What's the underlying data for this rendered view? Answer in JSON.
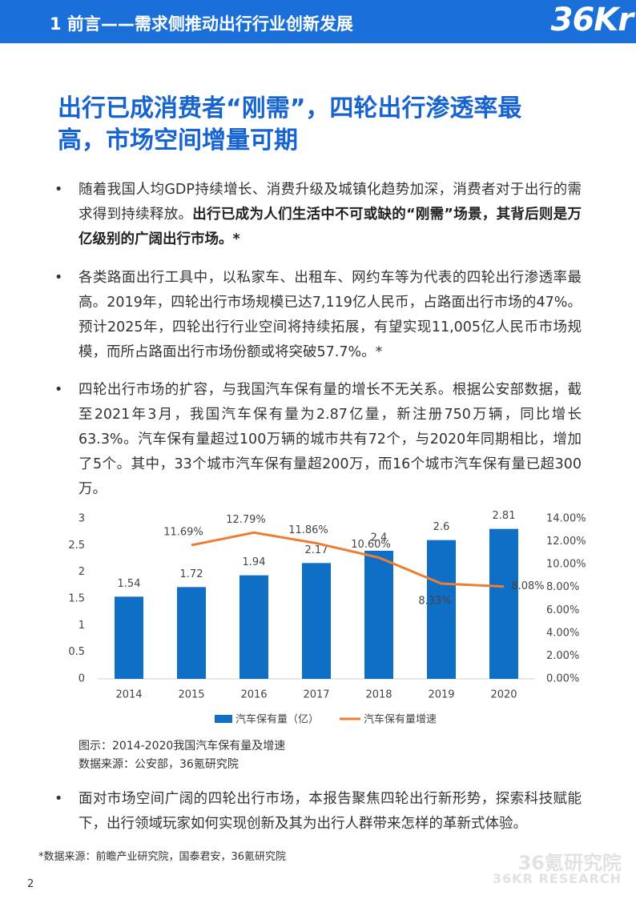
{
  "header": {
    "section": "1 前言——需求侧推动出行行业创新发展",
    "logo": "36Kr"
  },
  "title": [
    "出行已成消费者“刚需”，四轮出行渗透率最",
    "高，市场空间增量可期"
  ],
  "bullets": [
    {
      "parts": [
        {
          "text": "随着我国人均GDP持续增长、消费升级及城镇化趋势加深，消费者对于出行的需求得到持续释放。",
          "bold": false
        },
        {
          "text": "出行已成为人们生活中不可或缺的“刚需”场景，其背后则是万亿级别的广阔出行市场。*",
          "bold": true
        }
      ]
    },
    {
      "parts": [
        {
          "text": "各类路面出行工具中，以私家车、出租车、网约车等为代表的四轮出行渗透率最高。2019年，四轮出行市场规模已达7,119亿人民币，占路面出行市场的47%。预计2025年，四轮出行行业空间将持续拓展，有望实现11,005亿人民币市场规模，而所占路面出行市场份额或将突破57.7%。*",
          "bold": false
        }
      ]
    },
    {
      "parts": [
        {
          "text": "四轮出行市场的扩容，与我国汽车保有量的增长不无关系。根据公安部数据，截至2021年3月，我国汽车保有量为2.87亿量，新注册750万辆，同比增长63.3%。汽车保有量超过100万辆的城市共有72个，与2020年同期相比，增加了5个。其中，33个城市汽车保有量超200万，而16个城市汽车保有量已超300万。",
          "bold": false
        }
      ]
    }
  ],
  "chart_data": {
    "type": "bar",
    "categories": [
      "2014",
      "2015",
      "2016",
      "2017",
      "2018",
      "2019",
      "2020"
    ],
    "series": [
      {
        "name": "汽车保有量（亿）",
        "type": "bar",
        "color": "#0f6fc6",
        "values": [
          1.54,
          1.72,
          1.94,
          2.17,
          2.4,
          2.6,
          2.81
        ]
      },
      {
        "name": "汽车保有量增速",
        "type": "line",
        "axis": "y2",
        "color": "#ed7d31",
        "values": [
          null,
          11.69,
          12.79,
          11.86,
          10.6,
          8.33,
          8.08
        ],
        "value_labels": [
          null,
          "11.69%",
          "12.79%",
          "11.86%",
          "10.60%",
          "8.33%",
          "8.08%"
        ]
      }
    ],
    "ylim": [
      0,
      3
    ],
    "yticks": [
      0,
      0.5,
      1,
      1.5,
      2,
      2.5,
      3
    ],
    "y2lim": [
      0,
      14
    ],
    "y2ticks": [
      {
        "value": 0,
        "label": "0.00%"
      },
      {
        "value": 2,
        "label": "2.00%"
      },
      {
        "value": 4,
        "label": "4.00%"
      },
      {
        "value": 6,
        "label": "6.00%"
      },
      {
        "value": 8,
        "label": "8.00%"
      },
      {
        "value": 10,
        "label": "10.00%"
      },
      {
        "value": 12,
        "label": "12.00%"
      },
      {
        "value": 14,
        "label": "14.00%"
      }
    ],
    "legend": "bottom",
    "grid": false
  },
  "caption": "图示：2014-2020我国汽车保有量及增速",
  "source": "数据来源：公安部，36氪研究院",
  "last_bullet": "面对市场空间广阔的四轮出行市场，本报告聚焦四轮出行新形势，探索科技赋能下，出行领域玩家如何实现创新及其为出行人群带来怎样的革新式体验。",
  "footnote": "*数据来源：前瞻产业研究院，国泰君安，36氪研究院",
  "watermark": [
    "36氪研究院",
    "36KR RESEARCH"
  ],
  "page_number": "2"
}
